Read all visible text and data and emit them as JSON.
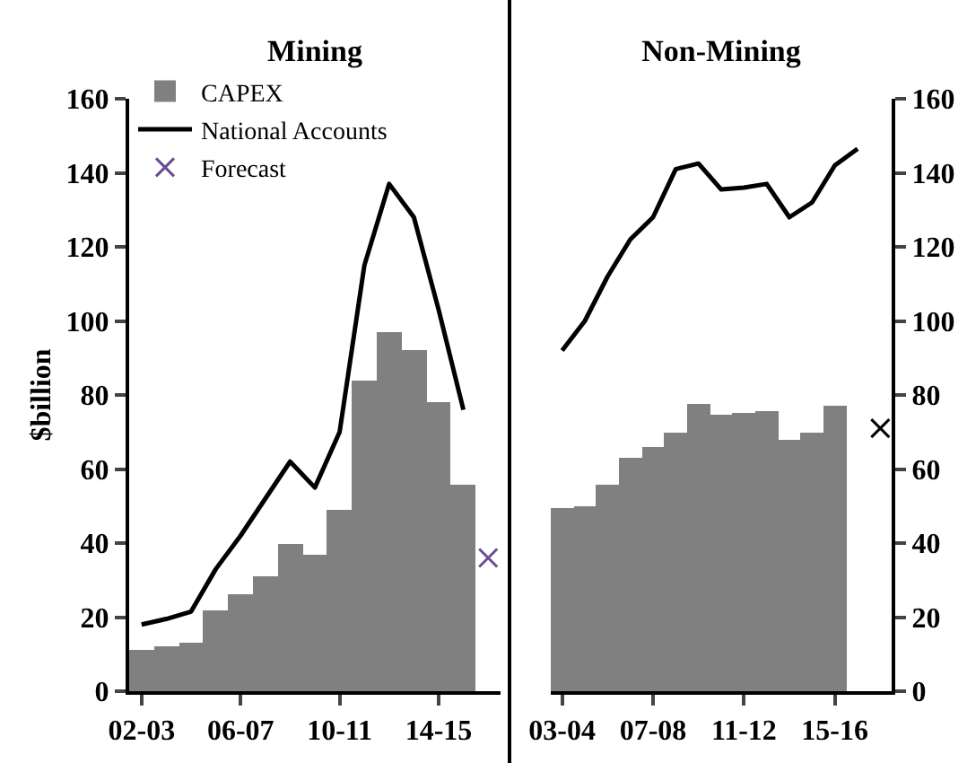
{
  "chart_data": [
    {
      "type": "bar",
      "title": "Mining",
      "ylabel": "$billion",
      "categories": [
        "02-03",
        null,
        null,
        null,
        "06-07",
        null,
        null,
        null,
        "10-11",
        null,
        null,
        null,
        "14-15",
        null,
        null
      ],
      "ylim": [
        0,
        160
      ],
      "yticks": [
        0,
        20,
        40,
        60,
        80,
        100,
        120,
        140,
        160
      ],
      "grid": false,
      "legend": "top left",
      "series": [
        {
          "name": "CAPEX",
          "color": "#808080",
          "values": [
            11,
            12,
            13,
            22,
            26,
            31,
            40,
            37,
            49,
            84,
            97,
            92,
            78,
            56,
            null
          ]
        },
        {
          "name": "National Accounts",
          "type": "line",
          "color": "#000000",
          "line_style": "solid",
          "marker": "none",
          "values": [
            18,
            19.5,
            21.5,
            33,
            42,
            52,
            62,
            55,
            70,
            115,
            137,
            128,
            103,
            76,
            null
          ]
        },
        {
          "name": "Forecast",
          "type": "scatter",
          "color": "#6a4c93",
          "marker": "cross",
          "values": [
            null,
            null,
            null,
            null,
            null,
            null,
            null,
            null,
            null,
            null,
            null,
            null,
            null,
            null,
            36
          ]
        }
      ]
    },
    {
      "type": "bar",
      "title": "Non-Mining",
      "categories": [
        "03-04",
        null,
        null,
        null,
        "07-08",
        null,
        null,
        null,
        "11-12",
        null,
        null,
        null,
        "15-16",
        null,
        null
      ],
      "ylim": [
        0,
        160
      ],
      "yticks": [
        0,
        20,
        40,
        60,
        80,
        100,
        120,
        140,
        160
      ],
      "grid": false,
      "legend": false,
      "series": [
        {
          "color": "#808080",
          "values": [
            49.5,
            50,
            56,
            63,
            66,
            70,
            77.5,
            74.5,
            75,
            75.5,
            68,
            70,
            77,
            null,
            null
          ]
        },
        {
          "type": "line",
          "color": "#000000",
          "line_style": "solid",
          "marker": "none",
          "values": [
            92,
            100,
            112,
            122,
            128,
            141,
            142.5,
            135.5,
            136,
            137,
            128,
            132,
            142,
            146.5,
            null
          ]
        },
        {
          "type": "scatter",
          "color": "#000000",
          "marker": "cross",
          "values": [
            null,
            null,
            null,
            null,
            null,
            null,
            null,
            null,
            null,
            null,
            null,
            null,
            null,
            null,
            71
          ]
        }
      ]
    }
  ]
}
